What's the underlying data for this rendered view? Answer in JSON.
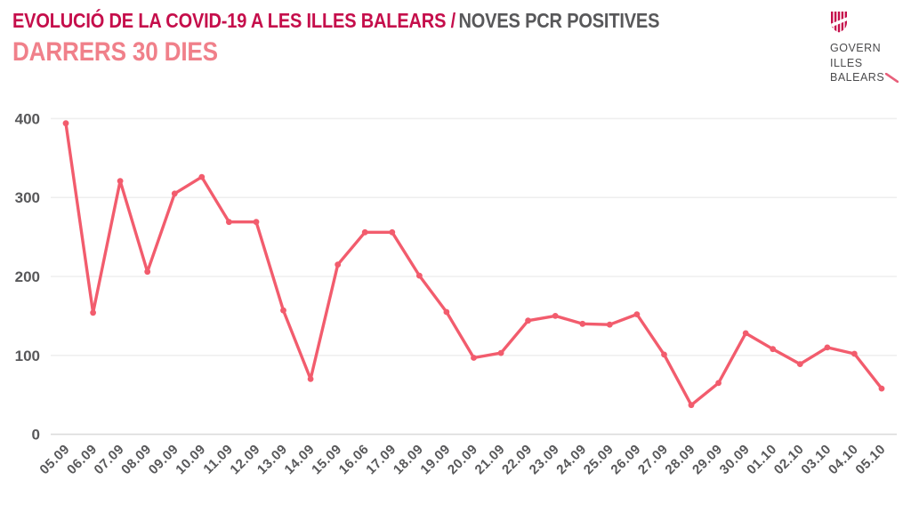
{
  "header": {
    "title_primary": "EVOLUCIÓ DE LA COVID-19 A LES ILLES BALEARS /",
    "title_secondary": "NOVES PCR POSITIVES",
    "subtitle": "DARRERS 30 DIES"
  },
  "logo": {
    "lines": [
      "GOVERN",
      "ILLES",
      "BALEARS"
    ],
    "icon": "balearic-shield-icon"
  },
  "colors": {
    "crimson": "#C50E4B",
    "salmon": "#F0808A",
    "gray_text": "#58585A",
    "axis_text": "#58585A",
    "line": "#F25C6D",
    "grid": "#EFEFEF",
    "zero_line": "#DBDBDB",
    "logo_slash": "#E8607B"
  },
  "chart_data": {
    "type": "line",
    "title": "EVOLUCIÓ DE LA COVID-19 A LES ILLES BALEARS / NOVES PCR POSITIVES — DARRERS 30 DIES",
    "categories": [
      "05.09",
      "06.09",
      "07.09",
      "08.09",
      "09.09",
      "10.09",
      "11.09",
      "12.09",
      "13.09",
      "14.09",
      "15.09",
      "16.06",
      "17.09",
      "18.09",
      "19.09",
      "20.09",
      "21.09",
      "22.09",
      "23.09",
      "24.09",
      "25.09",
      "26.09",
      "27.09",
      "28.09",
      "29.09",
      "30.09",
      "01.10",
      "02.10",
      "03.10",
      "04.10",
      "05.10"
    ],
    "values": [
      394,
      154,
      321,
      206,
      305,
      326,
      269,
      269,
      157,
      70,
      215,
      256,
      256,
      201,
      155,
      97,
      103,
      144,
      150,
      140,
      139,
      152,
      101,
      37,
      65,
      128,
      108,
      89,
      110,
      102,
      58
    ],
    "xlabel": "",
    "ylabel": "",
    "ylim": [
      0,
      400
    ],
    "yticks": [
      0,
      100,
      200,
      300,
      400
    ],
    "grid": true,
    "legend": "none",
    "marker": "circle"
  }
}
